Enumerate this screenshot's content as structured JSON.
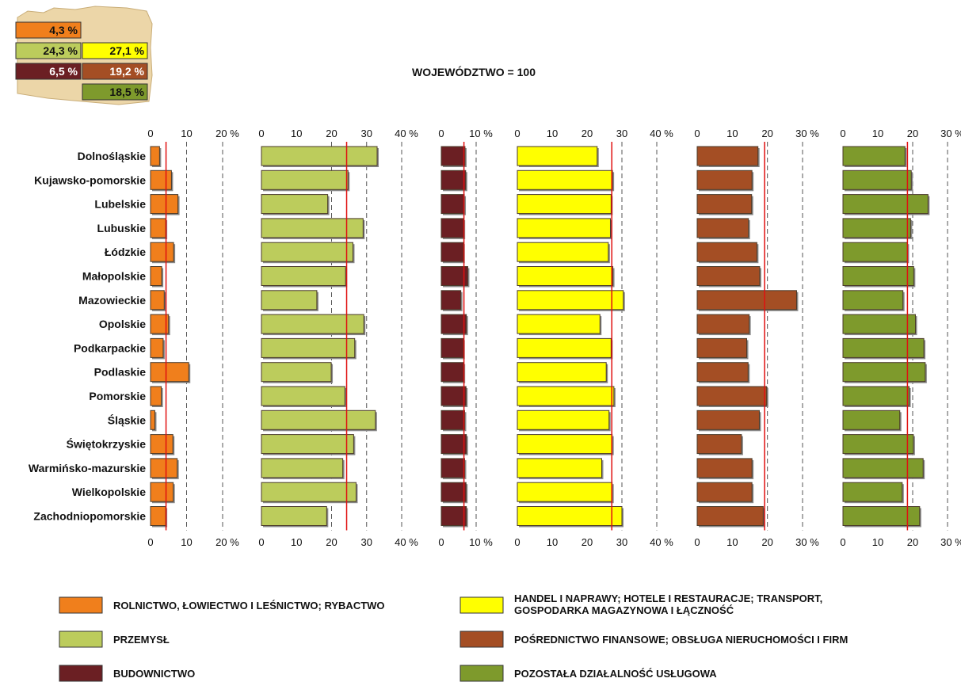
{
  "title": "WOJEWÓDZTWO = 100",
  "colors": {
    "agri": "#f07f1c",
    "industry": "#bccc5c",
    "construction": "#6b1f23",
    "trade": "#ffff00",
    "finance": "#a44e24",
    "other": "#7e9a2c",
    "reference_line": "#e01010"
  },
  "inset": {
    "icon": "poland-map-icon",
    "cells": [
      {
        "value": "4,3 %",
        "series": "agri"
      },
      {
        "value": "24,3 %",
        "series": "industry"
      },
      {
        "value": "27,1 %",
        "series": "trade"
      },
      {
        "value": "6,5 %",
        "series": "construction"
      },
      {
        "value": "19,2 %",
        "series": "finance"
      },
      {
        "value": "18,5 %",
        "series": "other"
      }
    ]
  },
  "chart_data": {
    "type": "bar",
    "orientation": "horizontal",
    "title": "WOJEWÓDZTWO = 100",
    "categories": [
      "Dolnośląskie",
      "Kujawsko-pomorskie",
      "Lubelskie",
      "Lubuskie",
      "Łódzkie",
      "Małopolskie",
      "Mazowieckie",
      "Opolskie",
      "Podkarpackie",
      "Podlaskie",
      "Pomorskie",
      "Śląskie",
      "Świętokrzyskie",
      "Warmińsko-mazurskie",
      "Wielkopolskie",
      "Zachodniopomorskie"
    ],
    "panels": [
      {
        "key": "agri",
        "name": "ROLNICTWO, ŁOWIECTWO I LEŚNICTWO; RYBACTWO",
        "xlim": [
          0,
          20
        ],
        "ticks": [
          "0",
          "10",
          "20 %"
        ],
        "dashed_at": [
          10,
          20
        ],
        "reference": 4.3,
        "values": [
          2.5,
          5.8,
          7.6,
          4.2,
          6.4,
          3.1,
          3.8,
          5.0,
          3.5,
          10.6,
          3.0,
          1.2,
          6.2,
          7.4,
          6.3,
          4.2
        ]
      },
      {
        "key": "industry",
        "name": "PRZEMYSŁ",
        "xlim": [
          0,
          40
        ],
        "ticks": [
          "0",
          "10",
          "20",
          "30",
          "40 %"
        ],
        "dashed_at": [
          20,
          30,
          40
        ],
        "reference": 24.3,
        "values": [
          33.0,
          24.7,
          18.9,
          29.0,
          26.1,
          24.0,
          15.8,
          29.2,
          26.6,
          19.9,
          23.8,
          32.5,
          26.3,
          23.2,
          27.0,
          18.6
        ]
      },
      {
        "key": "construction",
        "name": "BUDOWNICTWO",
        "xlim": [
          0,
          10
        ],
        "ticks": [
          "0",
          "10 %"
        ],
        "dashed_at": [
          10
        ],
        "reference": 6.5,
        "values": [
          6.8,
          7.0,
          6.6,
          6.4,
          6.3,
          7.6,
          5.6,
          7.2,
          6.3,
          6.4,
          7.1,
          6.7,
          7.2,
          6.7,
          7.1,
          7.2
        ]
      },
      {
        "key": "trade",
        "name": "HANDEL I NAPRAWY; HOTELE I RESTAURACJE; TRANSPORT, GOSPODARKA MAGAZYNOWA I ŁĄCZNOŚĆ",
        "xlim": [
          0,
          40
        ],
        "ticks": [
          "0",
          "10",
          "20",
          "30",
          "40 %"
        ],
        "dashed_at": [
          30,
          40
        ],
        "reference": 27.1,
        "values": [
          22.9,
          27.3,
          26.9,
          26.7,
          26.1,
          27.4,
          30.4,
          23.7,
          26.9,
          25.5,
          27.7,
          26.3,
          27.2,
          24.2,
          27.2,
          30.0
        ]
      },
      {
        "key": "finance",
        "name": "POŚREDNICTWO FINANSOWE; OBSŁUGA NIERUCHOMOŚCI I FIRM",
        "xlim": [
          0,
          30
        ],
        "ticks": [
          "0",
          "10",
          "20",
          "30 %"
        ],
        "dashed_at": [
          20,
          30
        ],
        "reference": 19.2,
        "values": [
          17.3,
          15.6,
          15.5,
          14.6,
          17.0,
          17.8,
          28.3,
          14.8,
          14.1,
          14.5,
          19.8,
          17.7,
          12.6,
          15.6,
          15.6,
          18.8
        ]
      },
      {
        "key": "other",
        "name": "POZOSTAŁA DZIAŁALNOŚĆ USŁUGOWA",
        "xlim": [
          0,
          30
        ],
        "ticks": [
          "0",
          "10",
          "20",
          "30 %"
        ],
        "dashed_at": [
          20,
          30
        ],
        "reference": 18.5,
        "values": [
          17.8,
          19.6,
          24.4,
          19.4,
          18.5,
          20.3,
          17.2,
          20.8,
          23.2,
          23.6,
          19.0,
          16.3,
          20.2,
          23.0,
          17.0,
          22.0
        ]
      }
    ]
  },
  "legend": [
    {
      "key": "agri",
      "label": "ROLNICTWO, ŁOWIECTWO I LEŚNICTWO; RYBACTWO"
    },
    {
      "key": "industry",
      "label": "PRZEMYSŁ"
    },
    {
      "key": "construction",
      "label": "BUDOWNICTWO"
    },
    {
      "key": "trade",
      "label": "HANDEL I NAPRAWY; HOTELE I RESTAURACJE; TRANSPORT,",
      "label2": "GOSPODARKA MAGAZYNOWA I ŁĄCZNOŚĆ"
    },
    {
      "key": "finance",
      "label": "POŚREDNICTWO FINANSOWE; OBSŁUGA NIERUCHOMOŚCI I FIRM"
    },
    {
      "key": "other",
      "label": "POZOSTAŁA DZIAŁALNOŚĆ USŁUGOWA"
    }
  ]
}
